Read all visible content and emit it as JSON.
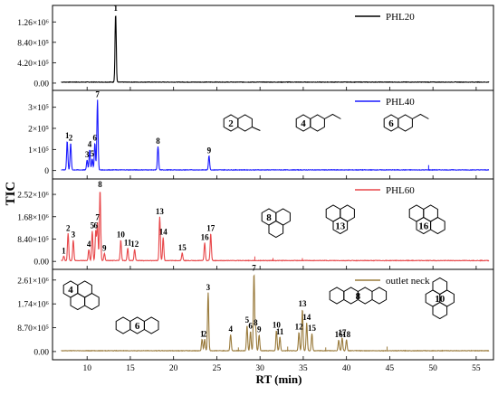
{
  "chart_data": {
    "type": "line",
    "xlabel": "RT (min)",
    "ylabel": "TIC",
    "xlim": [
      6,
      57
    ],
    "x_ticks": [
      "10",
      "15",
      "20",
      "25",
      "30",
      "35",
      "40",
      "45",
      "50",
      "55"
    ],
    "panels": [
      {
        "name": "PHL20",
        "color": "#000000",
        "ylim": [
          -150000,
          1600000
        ],
        "y_ticks": [
          {
            "value": 0,
            "label": "0.00"
          },
          {
            "value": 420000,
            "label": "4.20×10⁵"
          },
          {
            "value": 840000,
            "label": "8.40×10⁵"
          },
          {
            "value": 1260000,
            "label": "1.26×10⁶"
          }
        ],
        "peaks": [
          {
            "x": 13.3,
            "y": 1430000,
            "label": "1"
          }
        ],
        "baseline": 20000
      },
      {
        "name": "PHL40",
        "color": "#1a1aff",
        "ylim": [
          -40000,
          380000
        ],
        "y_ticks": [
          {
            "value": 0,
            "label": "0"
          },
          {
            "value": 100000,
            "label": "1×10⁵"
          },
          {
            "value": 200000,
            "label": "2×10⁵"
          },
          {
            "value": 300000,
            "label": "3×10⁵"
          }
        ],
        "peaks": [
          {
            "x": 7.7,
            "y": 140000,
            "label": "1"
          },
          {
            "x": 8.1,
            "y": 130000,
            "label": "2"
          },
          {
            "x": 10.0,
            "y": 50000,
            "label": "3"
          },
          {
            "x": 10.3,
            "y": 100000,
            "label": "4"
          },
          {
            "x": 10.6,
            "y": 55000,
            "label": "5"
          },
          {
            "x": 10.9,
            "y": 130000,
            "label": "6"
          },
          {
            "x": 11.2,
            "y": 335000,
            "label": "7"
          },
          {
            "x": 18.2,
            "y": 115000,
            "label": "8"
          },
          {
            "x": 24.1,
            "y": 70000,
            "label": "9"
          }
        ],
        "baseline": 3000
      },
      {
        "name": "PHL60",
        "color": "#e8474a",
        "ylim": [
          -300000,
          3100000
        ],
        "y_ticks": [
          {
            "value": 0,
            "label": "0.00"
          },
          {
            "value": 840000,
            "label": "8.40×10⁵"
          },
          {
            "value": 1680000,
            "label": "1.68×10⁶"
          },
          {
            "value": 2520000,
            "label": "2.52×10⁶"
          }
        ],
        "peaks": [
          {
            "x": 7.3,
            "y": 200000,
            "label": "1"
          },
          {
            "x": 7.8,
            "y": 1050000,
            "label": "2"
          },
          {
            "x": 8.4,
            "y": 800000,
            "label": "3"
          },
          {
            "x": 10.2,
            "y": 450000,
            "label": "4"
          },
          {
            "x": 10.6,
            "y": 1150000,
            "label": "5"
          },
          {
            "x": 11.0,
            "y": 1150000,
            "label": "6"
          },
          {
            "x": 11.2,
            "y": 1450000,
            "label": "7"
          },
          {
            "x": 11.5,
            "y": 2700000,
            "label": "8"
          },
          {
            "x": 12.0,
            "y": 300000,
            "label": "9"
          },
          {
            "x": 13.9,
            "y": 800000,
            "label": "10"
          },
          {
            "x": 14.7,
            "y": 500000,
            "label": "11"
          },
          {
            "x": 15.5,
            "y": 450000,
            "label": "12"
          },
          {
            "x": 18.4,
            "y": 1680000,
            "label": "13"
          },
          {
            "x": 18.8,
            "y": 900000,
            "label": "14"
          },
          {
            "x": 21.0,
            "y": 320000,
            "label": "15"
          },
          {
            "x": 23.6,
            "y": 700000,
            "label": "16"
          },
          {
            "x": 24.3,
            "y": 1050000,
            "label": "17"
          }
        ],
        "baseline": 30000
      },
      {
        "name": "outlet neck",
        "color": "#9a7b3c",
        "ylim": [
          -300000,
          3000000
        ],
        "y_ticks": [
          {
            "value": 0,
            "label": "0.00"
          },
          {
            "value": 870000,
            "label": "8.70×10⁵"
          },
          {
            "value": 1740000,
            "label": "1.74×10⁶"
          },
          {
            "value": 2610000,
            "label": "2.61×10⁶"
          }
        ],
        "peaks": [
          {
            "x": 23.3,
            "y": 450000,
            "label": "1"
          },
          {
            "x": 23.6,
            "y": 450000,
            "label": "2"
          },
          {
            "x": 24.0,
            "y": 2150000,
            "label": "3"
          },
          {
            "x": 26.6,
            "y": 620000,
            "label": "4"
          },
          {
            "x": 28.5,
            "y": 950000,
            "label": "5"
          },
          {
            "x": 28.9,
            "y": 740000,
            "label": "6"
          },
          {
            "x": 29.3,
            "y": 2850000,
            "label": "7"
          },
          {
            "x": 29.5,
            "y": 850000,
            "label": "8"
          },
          {
            "x": 29.9,
            "y": 600000,
            "label": "9"
          },
          {
            "x": 31.9,
            "y": 770000,
            "label": "10"
          },
          {
            "x": 32.3,
            "y": 530000,
            "label": "11"
          },
          {
            "x": 34.5,
            "y": 700000,
            "label": "12"
          },
          {
            "x": 34.9,
            "y": 1550000,
            "label": "13"
          },
          {
            "x": 35.4,
            "y": 1050000,
            "label": "14"
          },
          {
            "x": 36.0,
            "y": 650000,
            "label": "15"
          },
          {
            "x": 39.1,
            "y": 420000,
            "label": "16"
          },
          {
            "x": 39.5,
            "y": 500000,
            "label": "17"
          },
          {
            "x": 40.0,
            "y": 430000,
            "label": "18"
          }
        ],
        "baseline": 30000
      }
    ],
    "structure_labels": {
      "PHL40": [
        "2",
        "4",
        "6"
      ],
      "PHL60": [
        "8",
        "13",
        "16"
      ],
      "outlet neck": [
        "4",
        "6",
        "8",
        "10"
      ]
    }
  }
}
